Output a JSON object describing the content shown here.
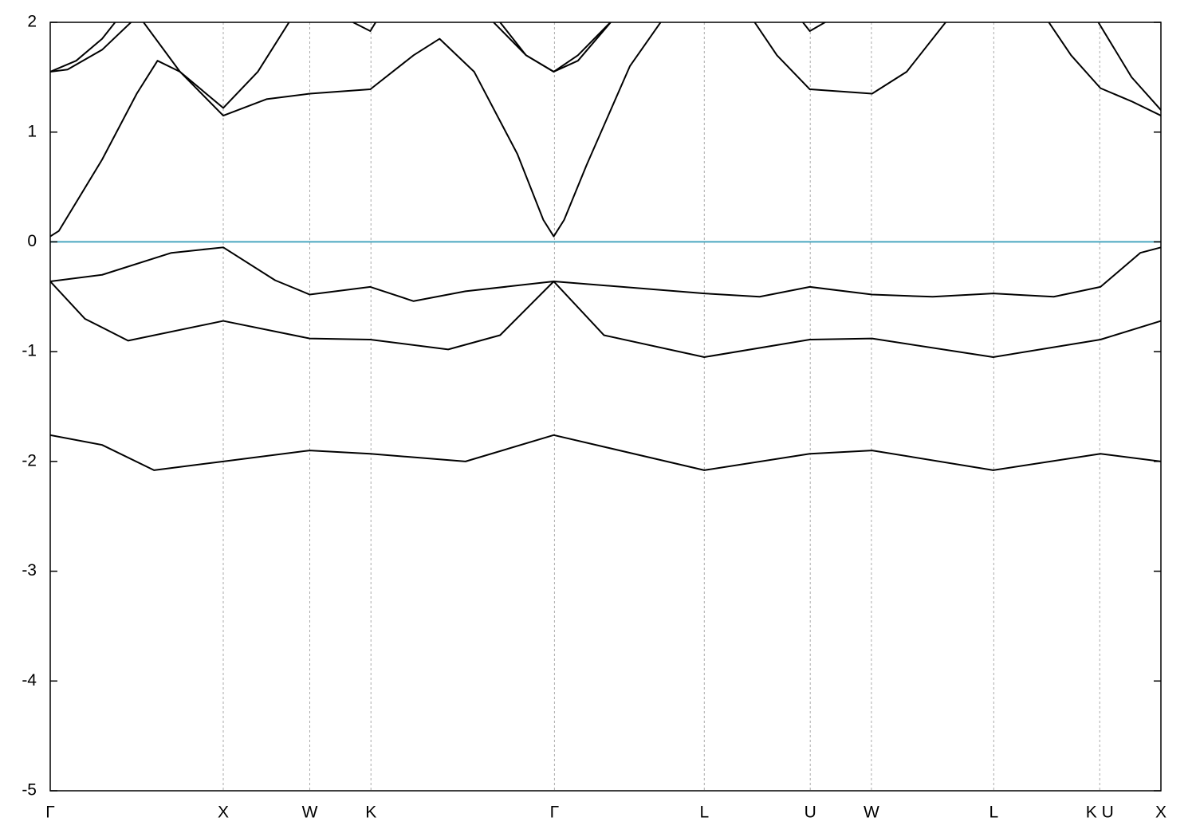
{
  "chart_data": {
    "type": "line",
    "xlim": [
      0,
      6.4193
    ],
    "xticks": [
      {
        "value": 0,
        "label": "Γ"
      },
      {
        "value": 1,
        "label": "X"
      },
      {
        "value": 1.5,
        "label": "W"
      },
      {
        "value": 1.8536,
        "label": "K"
      },
      {
        "value": 2.9142,
        "label": "Γ"
      },
      {
        "value": 3.7802,
        "label": "L"
      },
      {
        "value": 4.3926,
        "label": "U"
      },
      {
        "value": 4.7462,
        "label": "W"
      },
      {
        "value": 5.4533,
        "label": "L"
      },
      {
        "value": 6.0657,
        "label": "K U"
      },
      {
        "value": 6.4193,
        "label": "X"
      }
    ],
    "ylim": [
      -5,
      2
    ],
    "yticks": [
      -5,
      -4,
      -3,
      -2,
      -1,
      0,
      1,
      2
    ],
    "grid": true,
    "reference_line": {
      "value": 0,
      "color": "#4aa8c0"
    },
    "series": [
      {
        "color": "#000000",
        "x": [
          0,
          0.3,
          0.6,
          1.0,
          1.5,
          1.85,
          2.4,
          2.91,
          3.78,
          4.39,
          4.75,
          5.45,
          6.07,
          6.42
        ],
        "values": [
          -1.76,
          -1.85,
          -2.08,
          -2.0,
          -1.9,
          -1.93,
          -2.0,
          -1.76,
          -2.08,
          -1.93,
          -1.9,
          -2.08,
          -1.93,
          -2.0
        ]
      },
      {
        "color": "#000000",
        "x": [
          0,
          0.2,
          0.45,
          1.0,
          1.5,
          1.85,
          2.3,
          2.6,
          2.91,
          3.2,
          3.78,
          4.39,
          4.75,
          5.45,
          6.07,
          6.42
        ],
        "values": [
          -0.36,
          -0.7,
          -0.9,
          -0.72,
          -0.88,
          -0.89,
          -0.98,
          -0.85,
          -0.36,
          -0.85,
          -1.05,
          -0.89,
          -0.88,
          -1.05,
          -0.89,
          -0.72
        ]
      },
      {
        "color": "#000000",
        "x": [
          0,
          0.3,
          0.7,
          1.0,
          1.3,
          1.5,
          1.85,
          2.1,
          2.4,
          2.91,
          3.78,
          4.1,
          4.39,
          4.75,
          5.1,
          5.45,
          5.8,
          6.07,
          6.3,
          6.42
        ],
        "values": [
          -0.36,
          -0.3,
          -0.1,
          -0.05,
          -0.35,
          -0.48,
          -0.41,
          -0.54,
          -0.45,
          -0.36,
          -0.47,
          -0.5,
          -0.41,
          -0.48,
          -0.5,
          -0.47,
          -0.5,
          -0.41,
          -0.1,
          -0.05
        ]
      },
      {
        "color": "#000000",
        "x": [
          0,
          0.05,
          0.3,
          0.5,
          0.62,
          0.75,
          1.0,
          1.25,
          1.5,
          1.85,
          2.1,
          2.25,
          2.45,
          2.7,
          2.85,
          2.91,
          2.97,
          3.1,
          3.35,
          3.55,
          3.9,
          4.05,
          4.2,
          4.39,
          4.75,
          4.95,
          5.2,
          5.6,
          5.75,
          5.9,
          6.07,
          6.25,
          6.42
        ],
        "values": [
          0.05,
          0.1,
          0.75,
          1.35,
          1.65,
          1.55,
          1.15,
          1.3,
          1.35,
          1.39,
          1.7,
          1.85,
          1.55,
          0.8,
          0.2,
          0.05,
          0.2,
          0.7,
          1.6,
          2.05,
          null,
          2.05,
          1.7,
          1.39,
          1.35,
          1.55,
          2.05,
          null,
          2.05,
          1.7,
          1.4,
          1.28,
          1.15
        ]
      },
      {
        "color": "#000000",
        "x": [
          0,
          0.1,
          0.3,
          0.48,
          0.5,
          0.53,
          0.75,
          1.0,
          1.2,
          1.4,
          1.6,
          1.75,
          1.85,
          1.9,
          2.3,
          2.6,
          2.75,
          2.91,
          3.05,
          3.25,
          4.0,
          4.35,
          4.39,
          4.5,
          5.9,
          6.05,
          6.25,
          6.42
        ],
        "values": [
          1.55,
          1.57,
          1.75,
          2.02,
          null,
          2.02,
          1.55,
          1.22,
          1.55,
          2.05,
          null,
          2.0,
          1.92,
          2.05,
          null,
          2.0,
          1.7,
          1.55,
          1.7,
          2.02,
          null,
          2.0,
          1.92,
          2.02,
          null,
          2.02,
          1.5,
          1.2
        ]
      },
      {
        "color": "#000000",
        "x": [
          0,
          0.15,
          0.3,
          0.4,
          1.0,
          2.55,
          2.75,
          2.91,
          3.05,
          3.25
        ],
        "values": [
          1.55,
          1.65,
          1.85,
          2.05,
          null,
          2.02,
          1.7,
          1.55,
          1.65,
          2.02
        ]
      }
    ]
  }
}
